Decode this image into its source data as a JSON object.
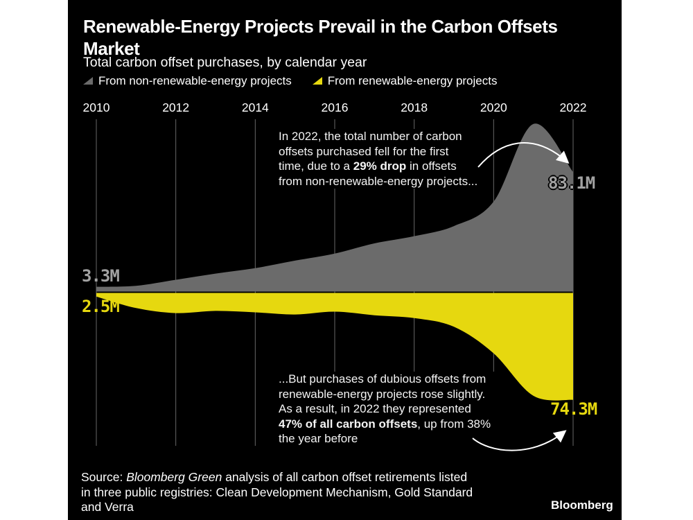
{
  "header": {
    "title": "Renewable-Energy Projects Prevail in the Carbon Offsets Market",
    "subtitle": "Total carbon offset purchases, by calendar year"
  },
  "legend": [
    {
      "label": "From non-renewable-energy projects",
      "color": "#6b6b6b"
    },
    {
      "label": "From renewable-energy projects",
      "color": "#e6d80f"
    }
  ],
  "chart_data": {
    "type": "area",
    "title": "Total carbon offset purchases, by calendar year",
    "x": [
      2010,
      2011,
      2012,
      2013,
      2014,
      2015,
      2016,
      2017,
      2018,
      2019,
      2020,
      2021,
      2022
    ],
    "x_ticks": [
      "2010",
      "2012",
      "2014",
      "2016",
      "2018",
      "2020",
      "2022"
    ],
    "unit": "million offsets",
    "series": [
      {
        "name": "From non-renewable-energy projects",
        "color": "#6b6b6b",
        "orientation": "above-baseline",
        "values": [
          3.3,
          4.0,
          8.2,
          12.5,
          16.3,
          21.5,
          26.4,
          33.5,
          38.5,
          45.5,
          62.5,
          116.5,
          83.1
        ]
      },
      {
        "name": "From renewable-energy projects",
        "color": "#e6d80f",
        "orientation": "below-baseline",
        "values": [
          2.5,
          10.5,
          14.0,
          12.5,
          13.5,
          15.0,
          13.0,
          15.5,
          17.5,
          23.5,
          42.0,
          71.5,
          74.3
        ]
      }
    ],
    "callouts": {
      "nonrenewable_2010": "3.3M",
      "renewable_2010": "2.5M",
      "nonrenewable_2022": "83.1M",
      "renewable_2022": "74.3M"
    }
  },
  "annotations": {
    "top": {
      "lines": [
        [
          {
            "t": "In 2022, the total number of carbon"
          }
        ],
        [
          {
            "t": "offsets purchased fell for the first"
          }
        ],
        [
          {
            "t": "time, due to a "
          },
          {
            "t": "29% drop",
            "b": true
          },
          {
            "t": " in offsets"
          }
        ],
        [
          {
            "t": "from non-renewable-energy projects..."
          }
        ]
      ]
    },
    "bottom": {
      "lines": [
        [
          {
            "t": "...But purchases of dubious offsets from"
          }
        ],
        [
          {
            "t": "renewable-energy projects rose slightly."
          }
        ],
        [
          {
            "t": "As a result, in 2022 they represented"
          }
        ],
        [
          {
            "t": "47% of all carbon offsets",
            "b": true
          },
          {
            "t": ", up from 38%"
          }
        ],
        [
          {
            "t": "the year before"
          }
        ]
      ]
    }
  },
  "source": {
    "lines": [
      [
        {
          "t": "Source: "
        },
        {
          "t": "Bloomberg Green",
          "i": true
        },
        {
          "t": " analysis of all carbon offset retirements listed"
        }
      ],
      [
        {
          "t": "in three public registries: Clean Development Mechanism, Gold Standard"
        }
      ],
      [
        {
          "t": "and Verra"
        }
      ]
    ]
  },
  "logo": "Bloomberg"
}
